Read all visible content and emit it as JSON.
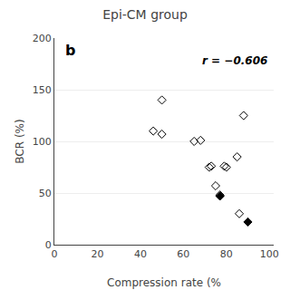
{
  "chart_data": {
    "type": "scatter",
    "title": "Epi-CM group",
    "xlabel": "Compression rate (%",
    "ylabel": "BCR (%)",
    "annotations": [
      "b",
      "r = −0.606"
    ],
    "xlim": [
      0,
      102
    ],
    "ylim": [
      0,
      200
    ],
    "xticks": [
      0,
      20,
      40,
      60,
      80,
      100
    ],
    "yticks": [
      0,
      50,
      100,
      150,
      200
    ],
    "grid": "y",
    "series": [
      {
        "marker": "diamond-open",
        "color": "#000000",
        "x": [
          46,
          50,
          50,
          65,
          68,
          72,
          73,
          75,
          77,
          79,
          80,
          85,
          86,
          88
        ],
        "values": [
          110,
          107,
          140,
          100,
          101,
          75,
          76,
          57,
          48,
          76,
          75,
          85,
          30,
          125
        ]
      },
      {
        "marker": "diamond",
        "color": "#000000",
        "x": [
          77,
          90
        ],
        "values": [
          47,
          22
        ]
      }
    ]
  }
}
